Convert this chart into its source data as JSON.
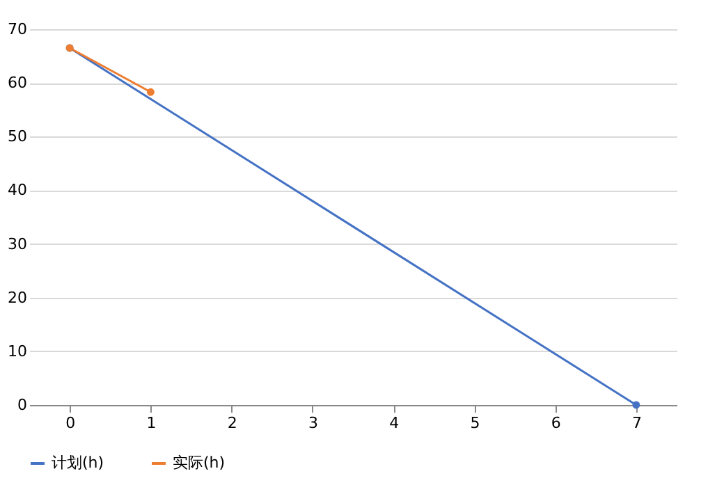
{
  "chart_data": {
    "type": "line",
    "xlim": [
      -0.5,
      7.5
    ],
    "xticks": [
      0,
      1,
      2,
      3,
      4,
      5,
      6,
      7
    ],
    "ylim": [
      0,
      70
    ],
    "yticks": [
      0,
      10,
      20,
      30,
      40,
      50,
      60,
      70
    ],
    "grid": "y",
    "legend": "bottom",
    "marker": "circle",
    "series": [
      {
        "name": "计划(h)",
        "color": "#4472c4",
        "x": [
          0,
          7
        ],
        "values": [
          66.5,
          0
        ]
      },
      {
        "name": "实际(h)",
        "color": "#ed7d31",
        "x": [
          0,
          1
        ],
        "values": [
          66.5,
          58.3
        ]
      }
    ]
  }
}
